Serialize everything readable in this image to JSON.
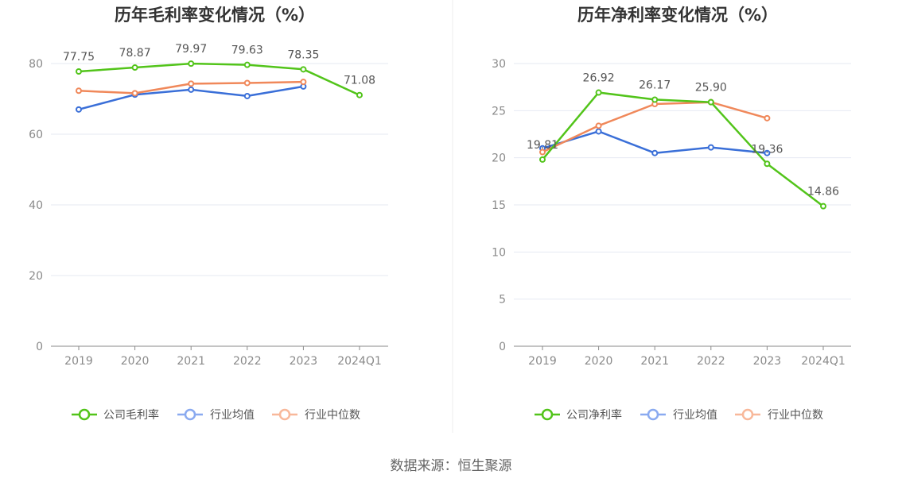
{
  "colors": {
    "company": "#52c41a",
    "industry_avg": "#3a6fd8",
    "industry_median": "#f0885a",
    "legend_avg_faded": "#8aaaf0",
    "legend_median_faded": "#f8b89a",
    "grid": "#e6e9f2",
    "axis": "#8a8a8a"
  },
  "source": "数据来源：恒生聚源",
  "chart_data": [
    {
      "type": "line",
      "title": "历年毛利率变化情况（%）",
      "categories": [
        "2019",
        "2020",
        "2021",
        "2022",
        "2023",
        "2024Q1"
      ],
      "ylim": [
        0,
        90
      ],
      "yticks": [
        0,
        20,
        40,
        60,
        80
      ],
      "grid": true,
      "legend_position": "bottom",
      "series": [
        {
          "name": "公司毛利率",
          "color_key": "company",
          "values": [
            77.75,
            78.87,
            79.97,
            79.63,
            78.35,
            71.08
          ],
          "labels": [
            "77.75",
            "78.87",
            "79.97",
            "79.63",
            "78.35",
            "71.08"
          ]
        },
        {
          "name": "行业均值",
          "color_key": "industry_avg",
          "values": [
            67.0,
            71.2,
            72.6,
            70.8,
            73.5,
            null
          ]
        },
        {
          "name": "行业中位数",
          "color_key": "industry_median",
          "values": [
            72.3,
            71.6,
            74.3,
            74.5,
            74.8,
            null
          ]
        }
      ]
    },
    {
      "type": "line",
      "title": "历年净利率变化情况（%）",
      "categories": [
        "2019",
        "2020",
        "2021",
        "2022",
        "2023",
        "2024Q1"
      ],
      "ylim": [
        0,
        30
      ],
      "yticks": [
        0,
        5,
        10,
        15,
        20,
        25,
        30
      ],
      "grid": true,
      "legend_position": "bottom",
      "series": [
        {
          "name": "公司净利率",
          "color_key": "company",
          "values": [
            19.81,
            26.92,
            26.17,
            25.9,
            19.36,
            14.86
          ],
          "labels": [
            "19.81",
            "26.92",
            "26.17",
            "25.90",
            "19.36",
            "14.86"
          ]
        },
        {
          "name": "行业均值",
          "color_key": "industry_avg",
          "values": [
            21.0,
            22.8,
            20.5,
            21.1,
            20.5,
            null
          ]
        },
        {
          "name": "行业中位数",
          "color_key": "industry_median",
          "values": [
            20.6,
            23.4,
            25.7,
            25.9,
            24.2,
            null
          ]
        }
      ]
    }
  ]
}
